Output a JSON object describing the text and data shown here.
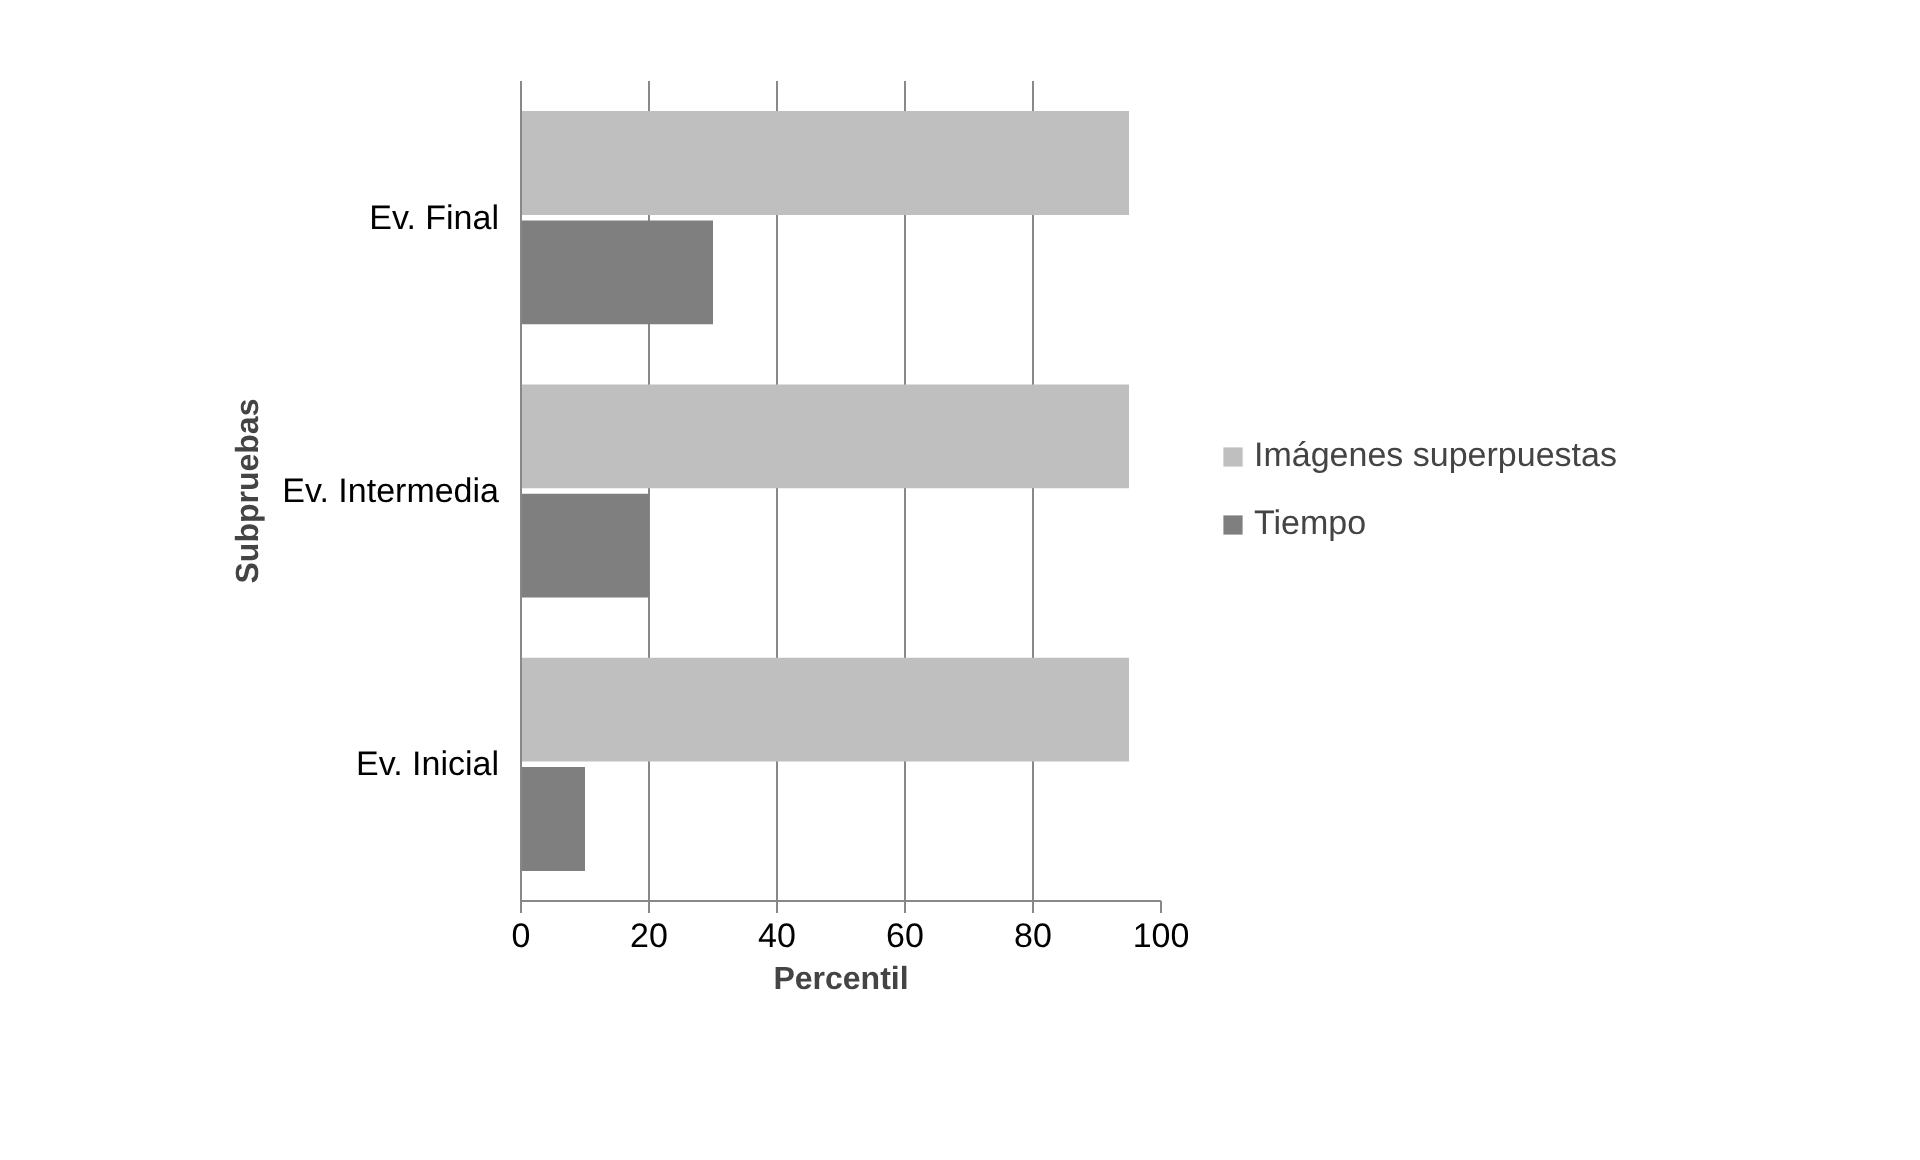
{
  "chart_data": {
    "type": "bar",
    "orientation": "horizontal",
    "xlabel": "Percentil",
    "ylabel": "Subpruebas",
    "categories": [
      "Ev. Final",
      "Ev. Intermedia",
      "Ev. Inicial"
    ],
    "series": [
      {
        "name": "Imágenes superpuestas",
        "color": "#bfbfbf",
        "values": [
          95,
          95,
          95
        ]
      },
      {
        "name": "Tiempo",
        "color": "#7f7f7f",
        "values": [
          30,
          20,
          10
        ]
      }
    ],
    "xlim": [
      0,
      100
    ],
    "xticks": [
      0,
      20,
      40,
      60,
      80,
      100
    ],
    "grid": "x",
    "legend": "right"
  }
}
